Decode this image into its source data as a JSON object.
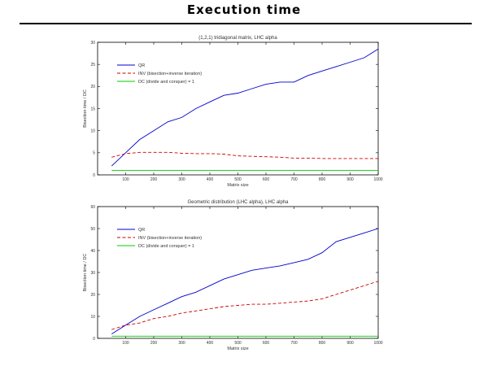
{
  "page": {
    "title": "Execution time"
  },
  "chart_data": [
    {
      "type": "line",
      "title": "(1,2,1) tridiagonal matrix, LHC alpha",
      "xlabel": "Matrix size",
      "ylabel": "Bisection time / DC",
      "xlim": [
        0,
        1000
      ],
      "ylim": [
        0,
        30
      ],
      "xticks": [
        100,
        200,
        300,
        400,
        500,
        600,
        700,
        800,
        900,
        1000
      ],
      "yticks": [
        0,
        5,
        10,
        15,
        20,
        25,
        30
      ],
      "legend_position": "top-left",
      "series": [
        {
          "name": "QR",
          "color": "#0000cc",
          "dash": "solid",
          "x": [
            50,
            100,
            150,
            200,
            250,
            300,
            350,
            400,
            450,
            500,
            550,
            600,
            650,
            700,
            750,
            800,
            850,
            900,
            950,
            1000
          ],
          "values": [
            2,
            5,
            8,
            10,
            12,
            13,
            15,
            16.5,
            18,
            18.5,
            19.5,
            20.5,
            21,
            21,
            22.5,
            23.5,
            24.5,
            25.5,
            26.5,
            28.5
          ]
        },
        {
          "name": "INV (bisection+inverse iteration)",
          "color": "#cc0000",
          "dash": "dashed",
          "x": [
            50,
            100,
            150,
            200,
            250,
            300,
            350,
            400,
            450,
            500,
            550,
            600,
            650,
            700,
            750,
            800,
            850,
            900,
            950,
            1000
          ],
          "values": [
            4,
            4.8,
            5.1,
            5.1,
            5.1,
            4.9,
            4.8,
            4.8,
            4.7,
            4.3,
            4.2,
            4.1,
            4,
            3.8,
            3.8,
            3.7,
            3.7,
            3.7,
            3.7,
            3.7
          ]
        },
        {
          "name": "DC (divide and conquer) = 1",
          "color": "#00cc00",
          "dash": "solid",
          "x": [
            50,
            1000
          ],
          "values": [
            1,
            1
          ]
        }
      ]
    },
    {
      "type": "line",
      "title": "Geometric distribution (LHC alpha), LHC alpha",
      "xlabel": "Matrix size",
      "ylabel": "Bisection time / DC",
      "xlim": [
        0,
        1000
      ],
      "ylim": [
        0,
        60
      ],
      "xticks": [
        100,
        200,
        300,
        400,
        500,
        600,
        700,
        800,
        900,
        1000
      ],
      "yticks": [
        0,
        10,
        20,
        30,
        40,
        50,
        60
      ],
      "legend_position": "top-left",
      "series": [
        {
          "name": "QR",
          "color": "#0000cc",
          "dash": "solid",
          "x": [
            50,
            100,
            150,
            200,
            250,
            300,
            350,
            400,
            450,
            500,
            550,
            600,
            650,
            700,
            750,
            800,
            850,
            900,
            950,
            1000
          ],
          "values": [
            2,
            6,
            10,
            13,
            16,
            19,
            21,
            24,
            27,
            29,
            31,
            32,
            33,
            34.5,
            36,
            39,
            44,
            46,
            48,
            50
          ]
        },
        {
          "name": "INV (bisection+inverse iteration)",
          "color": "#cc0000",
          "dash": "dashed",
          "x": [
            50,
            100,
            150,
            200,
            250,
            300,
            350,
            400,
            450,
            500,
            550,
            600,
            650,
            700,
            750,
            800,
            850,
            900,
            950,
            1000
          ],
          "values": [
            4,
            6,
            7,
            9,
            10,
            11.5,
            12.5,
            13.5,
            14.5,
            15,
            15.5,
            15.5,
            16,
            16.5,
            17,
            18,
            20,
            22,
            24,
            26
          ]
        },
        {
          "name": "DC (divide and conquer) = 1",
          "color": "#00cc00",
          "dash": "solid",
          "x": [
            50,
            1000
          ],
          "values": [
            1,
            1
          ]
        }
      ]
    }
  ]
}
